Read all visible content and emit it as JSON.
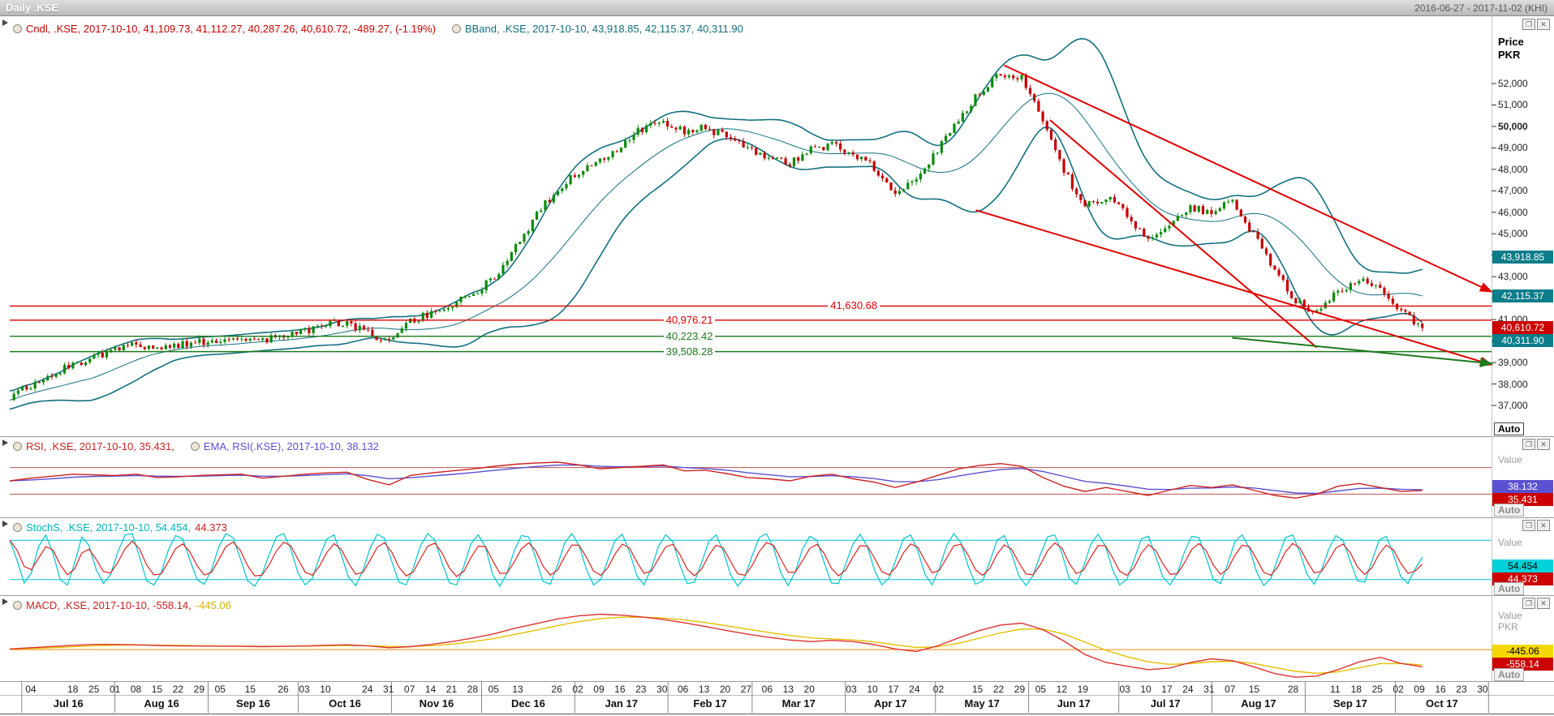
{
  "title_bar": {
    "title": "Daily .KSE",
    "date_range": "2016-06-27 - 2017-11-02 (KHI)"
  },
  "colors": {
    "up": "#0b8a0b",
    "down": "#c40000",
    "bband": "#13707f",
    "red_line": "#e00000",
    "green_line": "#1d7a1d",
    "rsi": "#cc2222",
    "rsi_ema": "#5a50d2",
    "stoch_k": "#00c4cc",
    "stoch_d": "#dd2222",
    "macd": "#dd3333",
    "macd_signal": "#e3c000",
    "macd_zero": "#ff8a00"
  },
  "main_panel": {
    "legend": [
      {
        "icon": true,
        "parts": [
          {
            "text": "Cndl, .KSE, 2017-10-10, 41,109.73, 41,112.27, 40,287.26, 40,610.72, -489.27, (-1.19%)",
            "color": "#cc0000"
          }
        ]
      },
      {
        "icon": true,
        "parts": [
          {
            "text": "BBand, .KSE, 2017-10-10, 43,918.85, 42,115.37, 40,311.90",
            "color": "#13707f"
          }
        ]
      }
    ],
    "axis_title": [
      "Price",
      "PKR"
    ],
    "axis_ticks": [
      {
        "label": "52,000",
        "price": 52000,
        "bold": false
      },
      {
        "label": "51,000",
        "price": 51000,
        "bold": false
      },
      {
        "label": "50,000",
        "price": 50000,
        "bold": true
      },
      {
        "label": "49,000",
        "price": 49000,
        "bold": false
      },
      {
        "label": "48,000",
        "price": 48000,
        "bold": false
      },
      {
        "label": "47,000",
        "price": 47000,
        "bold": false
      },
      {
        "label": "46,000",
        "price": 46000,
        "bold": false
      },
      {
        "label": "45,000",
        "price": 45000,
        "bold": false
      },
      {
        "label": "44,000",
        "price": 44000,
        "bold": false
      },
      {
        "label": "43,000",
        "price": 43000,
        "bold": false
      },
      {
        "label": "42,000",
        "price": 42000,
        "bold": false
      },
      {
        "label": "41,000",
        "price": 41000,
        "bold": false
      },
      {
        "label": "40,000",
        "price": 40000,
        "bold": false
      },
      {
        "label": "39,000",
        "price": 39000,
        "bold": false
      },
      {
        "label": "38,000",
        "price": 38000,
        "bold": false
      },
      {
        "label": "37,000",
        "price": 37000,
        "bold": false
      }
    ],
    "value_boxes": [
      {
        "text": "43,918.85",
        "price": 43918.85,
        "bg": "#0c7d8a",
        "fg": "#ffffff"
      },
      {
        "text": "42,115.37",
        "price": 42115.37,
        "bg": "#0c7d8a",
        "fg": "#ffffff"
      },
      {
        "text": "40,610.72",
        "price": 40610.72,
        "bg": "#cc0000",
        "fg": "#ffffff"
      },
      {
        "text": "40,311.90",
        "price": 40311.9,
        "bg": "#0c7d8a",
        "fg": "#ffffff"
      }
    ],
    "auto_label": "Auto"
  },
  "panels": {
    "rsi": {
      "legend": [
        {
          "icon": true,
          "parts": [
            {
              "text": "RSI, .KSE, 2017-10-10, 35.431,",
              "color": "#cc2222"
            }
          ]
        },
        {
          "icon": true,
          "parts": [
            {
              "text": "EMA, RSI(.KSE), 2017-10-10, 38.132",
              "color": "#5a50d2"
            }
          ]
        }
      ],
      "value_label": "Value",
      "boxes": [
        {
          "text": "38.132",
          "bg": "#5a50d2",
          "fg": "#ffffff"
        },
        {
          "text": "35.431",
          "bg": "#cc0000",
          "fg": "#ffffff"
        }
      ],
      "auto_label": "Auto"
    },
    "stoch": {
      "legend": [
        {
          "icon": true,
          "parts": [
            {
              "text": "StochS, .KSE, 2017-10-10, 54.454,",
              "color": "#00b4be"
            },
            {
              "text": " 44.373",
              "color": "#cc2222"
            }
          ]
        }
      ],
      "value_label": "Value",
      "boxes": [
        {
          "text": "54.454",
          "bg": "#00d2da",
          "fg": "#000000"
        },
        {
          "text": "44.373",
          "bg": "#cc0000",
          "fg": "#ffffff"
        }
      ],
      "auto_label": "Auto"
    },
    "macd": {
      "legend": [
        {
          "icon": true,
          "parts": [
            {
              "text": "MACD, .KSE, 2017-10-10, -558.14,",
              "color": "#cc2222"
            },
            {
              "text": " -445.06",
              "color": "#d4b400"
            }
          ]
        }
      ],
      "value_label": "Value",
      "unit": "PKR",
      "boxes": [
        {
          "text": "-445.06",
          "bg": "#f5d800",
          "fg": "#000000"
        },
        {
          "text": "-558.14",
          "bg": "#cc0000",
          "fg": "#ffffff"
        }
      ],
      "auto_label": "Auto"
    }
  },
  "x_axis": {
    "total_days": 493,
    "tick_days": [
      7,
      21,
      28,
      35,
      42,
      49,
      56,
      63,
      70,
      80,
      91,
      98,
      105,
      119,
      126,
      133,
      140,
      147,
      154,
      161,
      169,
      182,
      189,
      196,
      203,
      210,
      217,
      224,
      231,
      238,
      245,
      252,
      259,
      266,
      280,
      287,
      294,
      301,
      309,
      322,
      329,
      336,
      343,
      350,
      357,
      371,
      378,
      385,
      392,
      399,
      406,
      414,
      427,
      441,
      448,
      455,
      462,
      469,
      476,
      483,
      490
    ],
    "tick_labels": [
      "04",
      "18",
      "25",
      "01",
      "08",
      "15",
      "22",
      "29",
      "05",
      "15",
      "26",
      "03",
      "10",
      "24",
      "31",
      "07",
      "14",
      "21",
      "28",
      "05",
      "13",
      "26",
      "02",
      "09",
      "16",
      "23",
      "30",
      "06",
      "13",
      "20",
      "27",
      "06",
      "13",
      "20",
      "03",
      "10",
      "17",
      "24",
      "02",
      "15",
      "22",
      "29",
      "05",
      "12",
      "19",
      "03",
      "10",
      "17",
      "24",
      "31",
      "07",
      "15",
      "28",
      "11",
      "18",
      "25",
      "02",
      "09",
      "16",
      "23",
      "30"
    ],
    "month_boundary_days": [
      4,
      35,
      66,
      96,
      127,
      157,
      188,
      219,
      247,
      278,
      308,
      339,
      369,
      400,
      431,
      461,
      492
    ],
    "month_labels": [
      "Jul 16",
      "Aug 16",
      "Sep 16",
      "Oct 16",
      "Nov 16",
      "Dec 16",
      "Jan 17",
      "Feb 17",
      "Mar 17",
      "Apr 17",
      "May 17",
      "Jun 17",
      "Jul 17",
      "Aug 17",
      "Sep 17",
      "Oct 17"
    ]
  },
  "chart_data": [
    {
      "type": "candlestick",
      "title": "Daily .KSE",
      "symbol": ".KSE",
      "interval": "Daily",
      "x_range": [
        "2016-06-27",
        "2017-11-02"
      ],
      "y_range": [
        37000,
        52000
      ],
      "last_bar": {
        "date": "2017-10-10",
        "open": 41109.73,
        "high": 41112.27,
        "low": 40287.26,
        "close": 40610.72,
        "change": -489.27,
        "change_pct": -1.19
      },
      "bband": {
        "upper": 43918.85,
        "middle": 42115.37,
        "lower": 40311.9
      },
      "weekly_closes": [
        37400,
        37900,
        38400,
        38900,
        39300,
        39600,
        39850,
        39700,
        39800,
        39950,
        40100,
        40200,
        40000,
        40250,
        40500,
        40750,
        40850,
        40350,
        39950,
        40900,
        41300,
        41700,
        42200,
        43000,
        44400,
        45900,
        47100,
        47900,
        48500,
        49100,
        49900,
        50150,
        49800,
        49950,
        49500,
        48900,
        48600,
        48300,
        48900,
        49200,
        48700,
        48100,
        46900,
        47600,
        48900,
        50400,
        51600,
        52500,
        52300,
        50300,
        47900,
        46300,
        46700,
        45900,
        44700,
        45500,
        46200,
        46000,
        46500,
        44900,
        43300,
        41900,
        41300,
        42300,
        42800,
        42400,
        41500,
        40611
      ],
      "hlines": [
        {
          "price": 41630.68,
          "label": "41,630.68",
          "color": "#e00000",
          "label_x": 0.573
        },
        {
          "price": 40976.21,
          "label": "40,976.21",
          "color": "#e00000",
          "label_x": 0.462
        },
        {
          "price": 40223.42,
          "label": "40,223.42",
          "color": "#1d7a1d",
          "label_x": 0.462
        },
        {
          "price": 39508.28,
          "label": "39,508.28",
          "color": "#1d7a1d",
          "label_x": 0.462
        }
      ],
      "trendlines": [
        {
          "x1": 0.652,
          "y1": 46100,
          "x2": 1.0,
          "y2": 38900,
          "color": "#e00000",
          "arrow": true
        },
        {
          "x1": 0.671,
          "y1": 52850,
          "x2": 1.0,
          "y2": 42300,
          "color": "#e00000",
          "arrow": true
        },
        {
          "x1": 0.702,
          "y1": 50300,
          "x2": 0.882,
          "y2": 39700,
          "color": "#e00000",
          "arrow": false
        },
        {
          "x1": 0.825,
          "y1": 40150,
          "x2": 1.0,
          "y2": 38950,
          "color": "#1d7a1d",
          "arrow": true
        }
      ]
    },
    {
      "type": "line",
      "name": "RSI",
      "date": "2017-10-10",
      "current": 35.431,
      "ema_current": 38.132,
      "y_range": [
        0,
        100
      ],
      "levels": [
        70,
        30
      ],
      "values": [
        50,
        54,
        57,
        60,
        59,
        58,
        60,
        55,
        56,
        58,
        59,
        60,
        54,
        57,
        60,
        62,
        63,
        52,
        44,
        58,
        62,
        65,
        68,
        72,
        75,
        77,
        78,
        74,
        68,
        70,
        72,
        74,
        65,
        66,
        61,
        55,
        53,
        50,
        57,
        60,
        53,
        48,
        40,
        48,
        58,
        68,
        73,
        76,
        72,
        55,
        42,
        34,
        40,
        34,
        28,
        36,
        43,
        40,
        44,
        36,
        28,
        24,
        30,
        42,
        46,
        40,
        34,
        35.431
      ]
    },
    {
      "type": "line",
      "name": "StochS",
      "date": "2017-10-10",
      "current_k": 54.454,
      "current_d": 44.373,
      "y_range": [
        0,
        100
      ],
      "levels": [
        80,
        20
      ],
      "values": [
        80,
        50,
        15,
        30,
        70,
        88,
        60,
        20,
        12,
        45,
        85,
        72,
        35,
        14,
        28,
        62,
        88,
        90,
        55,
        18,
        12,
        30,
        65,
        87,
        82,
        50,
        20,
        13,
        35,
        70,
        90,
        84,
        52,
        18,
        10,
        28,
        58,
        85,
        90,
        66,
        30,
        12,
        22,
        55,
        82,
        88,
        58,
        24,
        11,
        34,
        68,
        89,
        83,
        48,
        16,
        12,
        38,
        72,
        90,
        80,
        45,
        15,
        12,
        40,
        75,
        88,
        70,
        28,
        10,
        30,
        64,
        87,
        85,
        52,
        17,
        13,
        42,
        76,
        90,
        72,
        36,
        12,
        20,
        50,
        80,
        89,
        62,
        26,
        12,
        36,
        70,
        88,
        78,
        42,
        14,
        16,
        46,
        78,
        88,
        64,
        28,
        10,
        24,
        56,
        84,
        90,
        68,
        30,
        11,
        32,
        66,
        86,
        80,
        46,
        15,
        14,
        44,
        74,
        89,
        70,
        34,
        12,
        22,
        52,
        82,
        88,
        64,
        28,
        12,
        38,
        72,
        90,
        76,
        40,
        13,
        18,
        48,
        80,
        87,
        60,
        26,
        11,
        26,
        58,
        85,
        88,
        60,
        22,
        13,
        40,
        74,
        89,
        72,
        36,
        12,
        20,
        50,
        82,
        86,
        56,
        24,
        12,
        30,
        62,
        86,
        84,
        54,
        20,
        14,
        44,
        78,
        88,
        68,
        32,
        11,
        22,
        54,
        84,
        88,
        62,
        28,
        13,
        34,
        66,
        87,
        80,
        48,
        18,
        16,
        48,
        80,
        86,
        58,
        25,
        14,
        36,
        54.5
      ]
    },
    {
      "type": "line",
      "name": "MACD",
      "date": "2017-10-10",
      "current": -558.14,
      "signal_current": -445.06,
      "zero_line": 0,
      "values": [
        20,
        60,
        100,
        140,
        170,
        170,
        155,
        135,
        120,
        115,
        110,
        105,
        95,
        105,
        120,
        140,
        155,
        120,
        60,
        95,
        170,
        260,
        380,
        520,
        700,
        850,
        1000,
        1100,
        1150,
        1120,
        1060,
        980,
        870,
        750,
        620,
        500,
        400,
        310,
        260,
        300,
        260,
        160,
        20,
        -60,
        120,
        380,
        620,
        800,
        860,
        650,
        280,
        -160,
        -420,
        -540,
        -650,
        -600,
        -420,
        -300,
        -360,
        -560,
        -780,
        -900,
        -860,
        -650,
        -400,
        -250,
        -450,
        -558.14
      ]
    }
  ]
}
